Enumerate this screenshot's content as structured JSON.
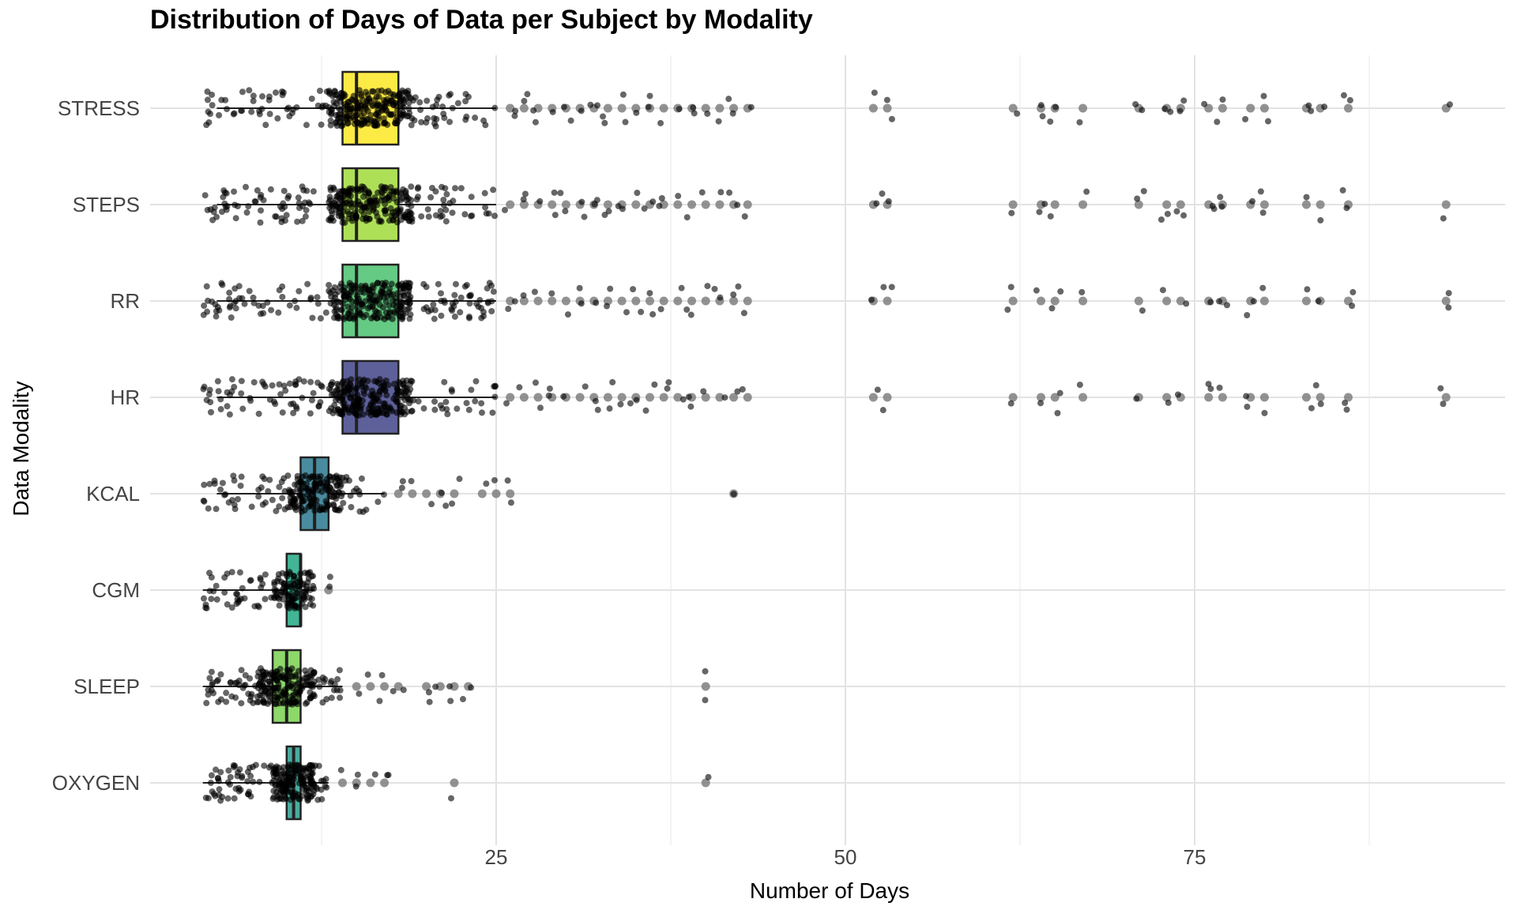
{
  "chart_data": {
    "type": "boxplot",
    "title": "Distribution of Days of Data per Subject by Modality",
    "xlabel": "Number of Days",
    "ylabel": "Data Modality",
    "xlim": [
      0,
      97
    ],
    "x_ticks": [
      25,
      50,
      75
    ],
    "x_minor_ticks": [
      12.5,
      37.5,
      62.5,
      87.5
    ],
    "grid": true,
    "legend": "none",
    "categories": [
      "STRESS",
      "STEPS",
      "RR",
      "HR",
      "KCAL",
      "CGM",
      "SLEEP",
      "OXYGEN"
    ],
    "boxes": [
      {
        "category": "STRESS",
        "q1": 14,
        "median": 15,
        "q3": 18,
        "whisker_low": 5,
        "whisker_high": 25,
        "color": "#fde725",
        "outliers": [
          26,
          27,
          28,
          29,
          30,
          31,
          32,
          33,
          34,
          35,
          36,
          37,
          38,
          39,
          40,
          41,
          42,
          43,
          52,
          53,
          62,
          64,
          65,
          67,
          71,
          73,
          74,
          76,
          77,
          79,
          80,
          83,
          84,
          86,
          93
        ]
      },
      {
        "category": "STEPS",
        "q1": 14,
        "median": 15,
        "q3": 18,
        "whisker_low": 5,
        "whisker_high": 25,
        "color": "#a0da39",
        "outliers": [
          26,
          27,
          28,
          29,
          30,
          31,
          32,
          33,
          34,
          35,
          36,
          37,
          38,
          39,
          40,
          41,
          42,
          43,
          52,
          53,
          62,
          64,
          65,
          67,
          71,
          73,
          74,
          76,
          77,
          79,
          80,
          83,
          84,
          86,
          93
        ]
      },
      {
        "category": "RR",
        "q1": 14,
        "median": 15,
        "q3": 18,
        "whisker_low": 5,
        "whisker_high": 25,
        "color": "#4ac16d",
        "outliers": [
          26,
          27,
          28,
          29,
          30,
          31,
          32,
          33,
          34,
          35,
          36,
          37,
          38,
          39,
          40,
          41,
          42,
          43,
          52,
          53,
          62,
          64,
          65,
          67,
          71,
          73,
          74,
          76,
          77,
          79,
          80,
          83,
          84,
          86,
          93
        ]
      },
      {
        "category": "HR",
        "q1": 14,
        "median": 15,
        "q3": 18,
        "whisker_low": 5,
        "whisker_high": 25,
        "color": "#414487",
        "outliers": [
          26,
          27,
          28,
          29,
          30,
          31,
          32,
          33,
          34,
          35,
          36,
          37,
          38,
          39,
          40,
          41,
          42,
          43,
          52,
          53,
          62,
          64,
          65,
          67,
          71,
          73,
          74,
          76,
          77,
          79,
          80,
          83,
          84,
          86,
          93
        ]
      },
      {
        "category": "KCAL",
        "q1": 11,
        "median": 12,
        "q3": 13,
        "whisker_low": 5,
        "whisker_high": 17,
        "color": "#2a788e",
        "outliers": [
          18,
          19,
          20,
          21,
          22,
          24,
          25,
          26,
          42
        ]
      },
      {
        "category": "CGM",
        "q1": 10,
        "median": 11,
        "q3": 11,
        "whisker_low": 4,
        "whisker_high": 12,
        "color": "#22a884",
        "outliers": [
          13
        ]
      },
      {
        "category": "SLEEP",
        "q1": 9,
        "median": 10,
        "q3": 11,
        "whisker_low": 4,
        "whisker_high": 14,
        "color": "#7ad151",
        "outliers": [
          15,
          16,
          17,
          18,
          20,
          21,
          22,
          23,
          40
        ]
      },
      {
        "category": "OXYGEN",
        "q1": 10,
        "median": 10.5,
        "q3": 11,
        "whisker_low": 4,
        "whisker_high": 13,
        "color": "#2a9d8f",
        "outliers": [
          14,
          15,
          16,
          17,
          22,
          40
        ]
      }
    ],
    "jitter_points": [
      {
        "category": "STRESS",
        "n": 300,
        "range": [
          4,
          25
        ]
      },
      {
        "category": "STEPS",
        "n": 300,
        "range": [
          4,
          25
        ]
      },
      {
        "category": "RR",
        "n": 300,
        "range": [
          4,
          25
        ]
      },
      {
        "category": "HR",
        "n": 300,
        "range": [
          4,
          25
        ]
      },
      {
        "category": "KCAL",
        "n": 200,
        "range": [
          4,
          17
        ]
      },
      {
        "category": "CGM",
        "n": 140,
        "range": [
          4,
          12
        ]
      },
      {
        "category": "SLEEP",
        "n": 220,
        "range": [
          4,
          14
        ]
      },
      {
        "category": "OXYGEN",
        "n": 220,
        "range": [
          4,
          13
        ]
      }
    ]
  }
}
